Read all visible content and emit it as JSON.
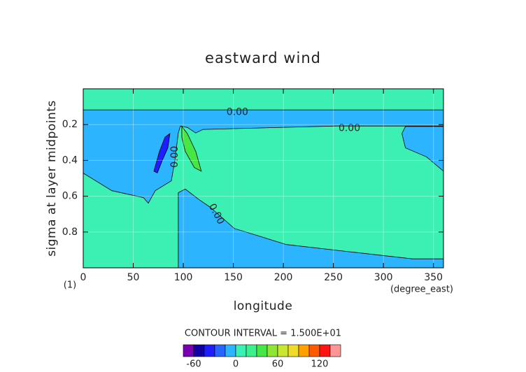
{
  "chart_data": {
    "type": "contour",
    "title": "eastward wind",
    "xlabel": "longitude",
    "ylabel": "sigma at layer midpoints",
    "x_unit": "(degree_east)",
    "panel_label": "(1)",
    "xlim": [
      0,
      360
    ],
    "xticks": [
      0,
      50,
      100,
      150,
      200,
      250,
      300,
      350
    ],
    "ylim": [
      0,
      1
    ],
    "y_reversed": true,
    "yticks": [
      0.2,
      0.4,
      0.6,
      0.8
    ],
    "grid": true,
    "contour_interval": "CONTOUR INTERVAL = 1.500E+01",
    "colorbar": {
      "levels": [
        -75,
        -60,
        -45,
        -30,
        -15,
        0,
        15,
        30,
        45,
        60,
        75,
        90,
        105,
        120,
        135,
        150
      ],
      "colors": [
        "#7a00b4",
        "#1400a0",
        "#1e1eff",
        "#2864ff",
        "#2cb4ff",
        "#3cf0b4",
        "#3cf08c",
        "#46e646",
        "#8ce632",
        "#c8e632",
        "#f0dc28",
        "#ffa000",
        "#ff5a00",
        "#ff1414",
        "#ff9696"
      ],
      "ticks": [
        -60,
        0,
        60,
        120
      ]
    },
    "regions": [
      {
        "range": [
          0,
          15
        ],
        "lon": [
          0,
          360,
          360,
          0
        ],
        "sigma": [
          0,
          0,
          1,
          1
        ]
      },
      {
        "range": [
          -15,
          0
        ],
        "lon": [
          0,
          360,
          360,
          252.2,
          119.5,
          112.5,
          104.1,
          97.1,
          95.0,
          91.5,
          88.0,
          72.0,
          65.0,
          60.1,
          28.6,
          0
        ],
        "sigma": [
          0.118,
          0.118,
          0.208,
          0.208,
          0.227,
          0.247,
          0.216,
          0.208,
          0.247,
          0.404,
          0.514,
          0.569,
          0.639,
          0.608,
          0.569,
          0.471
        ]
      },
      {
        "range": [
          -15,
          0
        ],
        "lon": [
          95,
          95,
          102,
          116,
          126.5,
          151,
          203,
          266,
          329,
          360,
          360
        ],
        "sigma": [
          1.0,
          0.58,
          0.56,
          0.62,
          0.66,
          0.78,
          0.87,
          0.91,
          0.95,
          0.95,
          1.0
        ]
      },
      {
        "range": [
          -15,
          0
        ],
        "lon": [
          322,
          318.5,
          322,
          343,
          360,
          360
        ],
        "sigma": [
          0.21,
          0.25,
          0.33,
          0.38,
          0.46,
          0.21
        ]
      },
      {
        "range": [
          -45,
          -30
        ],
        "lon": [
          70.6,
          76.1,
          81.7,
          86.6,
          84.5,
          79,
          74
        ],
        "sigma": [
          0.46,
          0.35,
          0.27,
          0.25,
          0.33,
          0.4,
          0.47
        ]
      },
      {
        "range": [
          30,
          45
        ],
        "lon": [
          98.5,
          104,
          112.5,
          118,
          111,
          102,
          98.5
        ],
        "sigma": [
          0.21,
          0.25,
          0.35,
          0.46,
          0.44,
          0.35,
          0.27
        ]
      }
    ],
    "contour_labels": [
      {
        "text": "0.00",
        "lon": 154,
        "sigma": 0.13
      },
      {
        "text": "0.00",
        "lon": 266,
        "sigma": 0.22
      },
      {
        "text": "0.00",
        "lon": 91.5,
        "sigma": 0.38
      },
      {
        "text": "0.00",
        "lon": 133,
        "sigma": 0.7
      }
    ]
  }
}
